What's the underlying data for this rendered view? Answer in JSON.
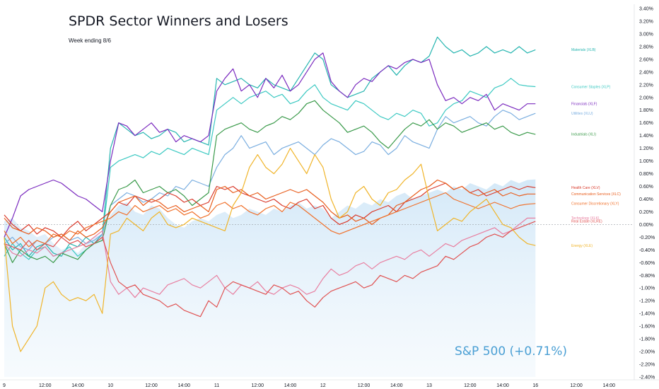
{
  "chart_data": {
    "type": "line",
    "title": "SPDR Sector Winners and Losers",
    "subtitle": "Week ending 8/6",
    "y_unit": "%",
    "ylim": [
      -2.4,
      3.4
    ],
    "y_ticks": [
      "3.40%",
      "3.20%",
      "3.00%",
      "2.80%",
      "2.60%",
      "2.40%",
      "2.20%",
      "2.00%",
      "1.80%",
      "1.60%",
      "1.40%",
      "1.20%",
      "1.00%",
      "0.80%",
      "0.60%",
      "0.40%",
      "0.20%",
      "0.00%",
      "-0.20%",
      "-0.40%",
      "-0.60%",
      "-0.80%",
      "-1.00%",
      "-1.20%",
      "-1.40%",
      "-1.60%",
      "-1.80%",
      "-2.00%",
      "-2.20%",
      "-2.40%"
    ],
    "x_ticks": [
      {
        "label": "9",
        "t": 0
      },
      {
        "label": "12:00",
        "t": 2.5
      },
      {
        "label": "14:00",
        "t": 4.5
      },
      {
        "label": "10",
        "t": 6.5
      },
      {
        "label": "12:00",
        "t": 9
      },
      {
        "label": "14:00",
        "t": 11
      },
      {
        "label": "11",
        "t": 13
      },
      {
        "label": "12:00",
        "t": 15.5
      },
      {
        "label": "14:00",
        "t": 17.5
      },
      {
        "label": "12",
        "t": 19.5
      },
      {
        "label": "12:00",
        "t": 22
      },
      {
        "label": "14:00",
        "t": 24
      },
      {
        "label": "13",
        "t": 26
      },
      {
        "label": "12:00",
        "t": 28.5
      },
      {
        "label": "14:00",
        "t": 30.5
      },
      {
        "label": "16",
        "t": 32.5
      },
      {
        "label": "12:00",
        "t": 35
      },
      {
        "label": "14:00",
        "t": 37
      }
    ],
    "x_range": [
      0,
      38.5
    ],
    "x": [
      0,
      0.5,
      1,
      1.5,
      2,
      2.5,
      3,
      3.5,
      4,
      4.5,
      5,
      5.5,
      6,
      6.5,
      7,
      7.5,
      8,
      8.5,
      9,
      9.5,
      10,
      10.5,
      11,
      11.5,
      12,
      12.5,
      13,
      13.5,
      14,
      14.5,
      15,
      15.5,
      16,
      16.5,
      17,
      17.5,
      18,
      18.5,
      19,
      19.5,
      20,
      20.5,
      21,
      21.5,
      22,
      22.5,
      23,
      23.5,
      24,
      24.5,
      25,
      25.5,
      26,
      26.5,
      27,
      27.5,
      28,
      28.5,
      29,
      29.5,
      30,
      30.5,
      31,
      31.5,
      32,
      32.5
    ],
    "benchmark": {
      "name": "S&P 500 (+0.71%)",
      "color": "#4a9fd4",
      "values": [
        0.05,
        0.1,
        -0.05,
        -0.1,
        -0.2,
        -0.15,
        -0.3,
        -0.4,
        -0.35,
        -0.45,
        -0.3,
        -0.2,
        -0.15,
        0.15,
        0.3,
        0.35,
        0.2,
        0.15,
        0.3,
        0.25,
        0.1,
        0.0,
        -0.05,
        0.05,
        0.1,
        0.05,
        0.15,
        0.2,
        0.1,
        0.15,
        0.25,
        0.2,
        0.15,
        0.25,
        0.2,
        0.3,
        0.35,
        0.25,
        0.3,
        0.25,
        0.1,
        0.2,
        0.3,
        0.25,
        0.35,
        0.3,
        0.4,
        0.35,
        0.45,
        0.5,
        0.4,
        0.45,
        0.5,
        0.55,
        0.5,
        0.6,
        0.55,
        0.65,
        0.6,
        0.55,
        0.65,
        0.6,
        0.7,
        0.65,
        0.7,
        0.71
      ]
    },
    "series": [
      {
        "name": "Materials (XLB)",
        "color": "#26b5b0",
        "values": [
          -0.2,
          -0.4,
          -0.3,
          -0.5,
          -0.35,
          -0.3,
          -0.45,
          -0.5,
          -0.3,
          -0.35,
          -0.2,
          -0.3,
          -0.15,
          1.2,
          1.6,
          1.5,
          1.4,
          1.45,
          1.35,
          1.4,
          1.5,
          1.45,
          1.3,
          1.35,
          1.3,
          1.25,
          2.3,
          2.2,
          2.25,
          2.3,
          2.2,
          2.15,
          2.3,
          2.2,
          2.15,
          2.1,
          2.3,
          2.5,
          2.7,
          2.6,
          2.2,
          2.1,
          2.0,
          2.05,
          2.1,
          2.3,
          2.4,
          2.5,
          2.35,
          2.5,
          2.6,
          2.55,
          2.65,
          2.95,
          2.8,
          2.7,
          2.75,
          2.65,
          2.7,
          2.8,
          2.7,
          2.75,
          2.7,
          2.8,
          2.7,
          2.75
        ]
      },
      {
        "name": "Consumer Staples (XLP)",
        "color": "#3cc9c2",
        "values": [
          -0.5,
          -0.3,
          -0.45,
          -0.55,
          -0.4,
          -0.35,
          -0.5,
          -0.45,
          -0.35,
          -0.5,
          -0.4,
          -0.3,
          -0.2,
          0.9,
          1.0,
          1.05,
          1.1,
          1.05,
          1.15,
          1.1,
          1.2,
          1.15,
          1.1,
          1.2,
          1.15,
          1.1,
          1.8,
          1.9,
          2.0,
          1.9,
          2.0,
          2.05,
          2.1,
          2.0,
          2.05,
          1.9,
          1.95,
          2.1,
          2.2,
          2.0,
          1.9,
          1.85,
          1.8,
          1.95,
          1.9,
          1.8,
          1.7,
          1.65,
          1.75,
          1.7,
          1.8,
          1.75,
          1.55,
          1.6,
          1.8,
          1.9,
          1.95,
          2.1,
          2.05,
          2.0,
          2.15,
          2.2,
          2.3,
          2.2,
          2.18,
          2.17
        ]
      },
      {
        "name": "Financials (XLF)",
        "color": "#7b2bbf",
        "values": [
          -0.2,
          0.1,
          0.45,
          0.55,
          0.6,
          0.65,
          0.7,
          0.65,
          0.55,
          0.45,
          0.4,
          0.3,
          0.2,
          1.0,
          1.6,
          1.55,
          1.4,
          1.5,
          1.6,
          1.45,
          1.5,
          1.3,
          1.4,
          1.35,
          1.3,
          1.4,
          2.1,
          2.3,
          2.45,
          2.1,
          2.2,
          2.0,
          2.3,
          2.15,
          2.35,
          2.1,
          2.2,
          2.4,
          2.6,
          2.7,
          2.25,
          2.1,
          2.0,
          2.2,
          2.3,
          2.25,
          2.4,
          2.5,
          2.45,
          2.55,
          2.6,
          2.55,
          2.6,
          2.2,
          1.95,
          2.0,
          1.9,
          2.0,
          1.95,
          2.05,
          1.8,
          1.9,
          1.85,
          1.8,
          1.9,
          1.9
        ]
      },
      {
        "name": "Utilities (XLU)",
        "color": "#7aaee0",
        "values": [
          -0.3,
          -0.2,
          -0.35,
          -0.4,
          -0.25,
          -0.3,
          -0.2,
          -0.15,
          -0.25,
          -0.2,
          -0.3,
          -0.25,
          -0.15,
          0.3,
          0.4,
          0.5,
          0.45,
          0.35,
          0.4,
          0.5,
          0.45,
          0.6,
          0.55,
          0.7,
          0.65,
          0.6,
          0.9,
          1.1,
          1.2,
          1.4,
          1.2,
          1.25,
          1.3,
          1.1,
          1.2,
          1.25,
          1.3,
          1.2,
          1.1,
          1.25,
          1.35,
          1.3,
          1.2,
          1.1,
          1.15,
          1.3,
          1.25,
          1.1,
          1.2,
          1.4,
          1.3,
          1.25,
          1.2,
          1.5,
          1.7,
          1.6,
          1.65,
          1.7,
          1.6,
          1.55,
          1.7,
          1.8,
          1.75,
          1.65,
          1.7,
          1.75
        ]
      },
      {
        "name": "Industrials (XLI)",
        "color": "#3a9a4a",
        "values": [
          -0.3,
          -0.6,
          -0.4,
          -0.5,
          -0.55,
          -0.5,
          -0.6,
          -0.45,
          -0.5,
          -0.55,
          -0.4,
          -0.3,
          -0.25,
          0.3,
          0.55,
          0.6,
          0.7,
          0.5,
          0.55,
          0.6,
          0.5,
          0.55,
          0.45,
          0.3,
          0.4,
          0.5,
          1.4,
          1.5,
          1.55,
          1.6,
          1.5,
          1.45,
          1.55,
          1.6,
          1.7,
          1.65,
          1.75,
          1.9,
          1.95,
          1.8,
          1.7,
          1.6,
          1.45,
          1.5,
          1.55,
          1.45,
          1.3,
          1.2,
          1.35,
          1.5,
          1.6,
          1.55,
          1.65,
          1.5,
          1.6,
          1.55,
          1.45,
          1.5,
          1.55,
          1.6,
          1.5,
          1.55,
          1.45,
          1.4,
          1.45,
          1.42
        ]
      },
      {
        "name": "Health Care (XLV)",
        "color": "#d93a2b",
        "values": [
          0.15,
          0.0,
          -0.1,
          0.0,
          -0.15,
          -0.05,
          -0.1,
          -0.2,
          -0.05,
          0.05,
          -0.1,
          0.0,
          0.1,
          0.2,
          0.35,
          0.3,
          0.45,
          0.4,
          0.35,
          0.4,
          0.5,
          0.45,
          0.35,
          0.4,
          0.3,
          0.35,
          0.6,
          0.55,
          0.6,
          0.5,
          0.45,
          0.4,
          0.35,
          0.4,
          0.3,
          0.25,
          0.35,
          0.4,
          0.25,
          0.3,
          0.1,
          0.0,
          0.05,
          0.15,
          0.1,
          0.2,
          0.25,
          0.3,
          0.2,
          0.35,
          0.4,
          0.45,
          0.55,
          0.6,
          0.65,
          0.55,
          0.6,
          0.5,
          0.55,
          0.45,
          0.5,
          0.55,
          0.6,
          0.55,
          0.6,
          0.58
        ]
      },
      {
        "name": "Communication Services (XLC)",
        "color": "#e85d1c",
        "values": [
          0.1,
          -0.05,
          -0.1,
          -0.15,
          -0.05,
          -0.1,
          -0.2,
          -0.15,
          -0.25,
          -0.1,
          -0.2,
          -0.15,
          -0.05,
          0.2,
          0.35,
          0.4,
          0.45,
          0.3,
          0.4,
          0.35,
          0.25,
          0.3,
          0.2,
          0.25,
          0.3,
          0.2,
          0.55,
          0.6,
          0.5,
          0.55,
          0.45,
          0.5,
          0.4,
          0.45,
          0.5,
          0.55,
          0.5,
          0.55,
          0.45,
          0.35,
          0.2,
          0.1,
          0.15,
          0.05,
          0.1,
          0.0,
          0.1,
          0.15,
          0.3,
          0.35,
          0.45,
          0.55,
          0.6,
          0.7,
          0.65,
          0.55,
          0.6,
          0.5,
          0.45,
          0.5,
          0.55,
          0.45,
          0.5,
          0.45,
          0.48,
          0.48
        ]
      },
      {
        "name": "Consumer Discretionary (XLY)",
        "color": "#f0702a",
        "values": [
          -0.1,
          -0.3,
          -0.2,
          -0.35,
          -0.25,
          -0.3,
          -0.15,
          -0.2,
          -0.1,
          -0.15,
          -0.05,
          0.0,
          0.05,
          0.1,
          0.2,
          0.15,
          0.3,
          0.2,
          0.25,
          0.3,
          0.2,
          0.25,
          0.15,
          0.2,
          0.1,
          0.15,
          0.3,
          0.35,
          0.25,
          0.3,
          0.2,
          0.15,
          0.25,
          0.3,
          0.2,
          0.35,
          0.3,
          0.2,
          0.1,
          0.0,
          -0.1,
          -0.15,
          -0.1,
          -0.05,
          0.0,
          0.05,
          0.1,
          0.15,
          0.2,
          0.25,
          0.3,
          0.35,
          0.4,
          0.45,
          0.5,
          0.4,
          0.35,
          0.3,
          0.25,
          0.3,
          0.35,
          0.3,
          0.25,
          0.3,
          0.32,
          0.33
        ]
      },
      {
        "name": "Technology (XLK)",
        "color": "#e87fa0",
        "values": [
          -0.3,
          -0.45,
          -0.5,
          -0.4,
          -0.45,
          -0.35,
          -0.5,
          -0.45,
          -0.4,
          -0.35,
          -0.3,
          -0.2,
          -0.1,
          -0.9,
          -1.1,
          -1.0,
          -1.15,
          -1.0,
          -1.05,
          -1.1,
          -0.95,
          -0.9,
          -0.85,
          -0.95,
          -1.0,
          -0.9,
          -0.8,
          -1.0,
          -1.1,
          -0.95,
          -1.0,
          -0.9,
          -1.05,
          -1.1,
          -1.0,
          -0.95,
          -1.0,
          -1.1,
          -1.05,
          -0.85,
          -0.7,
          -0.8,
          -0.75,
          -0.65,
          -0.6,
          -0.7,
          -0.6,
          -0.55,
          -0.5,
          -0.55,
          -0.45,
          -0.4,
          -0.5,
          -0.4,
          -0.3,
          -0.35,
          -0.25,
          -0.2,
          -0.15,
          -0.1,
          -0.05,
          -0.15,
          -0.1,
          0.0,
          0.1,
          0.1
        ]
      },
      {
        "name": "Real Estate (XLRE)",
        "color": "#e05252",
        "values": [
          -0.3,
          -0.35,
          -0.4,
          -0.25,
          -0.4,
          -0.3,
          -0.35,
          -0.2,
          -0.3,
          -0.25,
          -0.35,
          -0.3,
          -0.2,
          -0.6,
          -0.9,
          -1.0,
          -0.95,
          -1.1,
          -1.15,
          -1.2,
          -1.3,
          -1.25,
          -1.35,
          -1.4,
          -1.45,
          -1.2,
          -1.3,
          -1.0,
          -0.9,
          -0.95,
          -1.0,
          -1.05,
          -1.1,
          -0.95,
          -1.0,
          -1.1,
          -1.05,
          -1.2,
          -1.3,
          -1.15,
          -1.05,
          -1.0,
          -0.95,
          -0.9,
          -1.0,
          -0.95,
          -0.8,
          -0.85,
          -0.9,
          -0.8,
          -0.85,
          -0.75,
          -0.7,
          -0.65,
          -0.5,
          -0.55,
          -0.45,
          -0.35,
          -0.3,
          -0.2,
          -0.15,
          -0.2,
          -0.1,
          -0.05,
          0.0,
          0.05
        ]
      },
      {
        "name": "Energy (XLE)",
        "color": "#f0b429",
        "values": [
          -0.2,
          -1.6,
          -2.0,
          -1.8,
          -1.6,
          -1.0,
          -0.9,
          -1.1,
          -1.2,
          -1.15,
          -1.2,
          -1.1,
          -1.4,
          -0.15,
          -0.1,
          0.1,
          0.0,
          -0.1,
          0.1,
          0.2,
          0.0,
          -0.05,
          0.0,
          0.1,
          0.05,
          0.0,
          -0.05,
          -0.1,
          0.3,
          0.5,
          0.9,
          1.1,
          0.9,
          0.8,
          0.95,
          1.2,
          1.0,
          0.8,
          1.1,
          0.9,
          0.4,
          0.1,
          0.2,
          0.5,
          0.6,
          0.4,
          0.3,
          0.5,
          0.55,
          0.7,
          0.8,
          0.95,
          0.4,
          -0.1,
          0.0,
          0.1,
          0.05,
          0.2,
          0.3,
          0.4,
          0.2,
          0.0,
          -0.05,
          -0.2,
          -0.3,
          -0.33
        ]
      }
    ]
  }
}
